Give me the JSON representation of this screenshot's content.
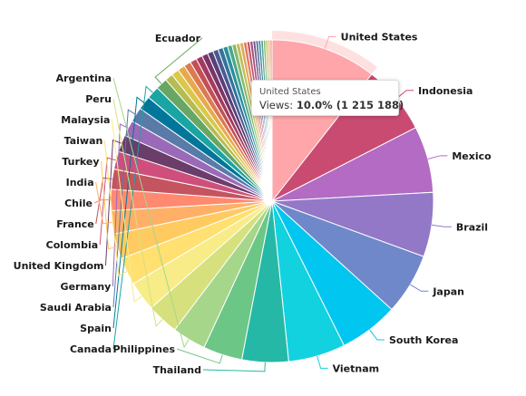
{
  "chart_data": {
    "type": "pie",
    "title": "",
    "legend": "none",
    "slices": [
      {
        "label": "United States",
        "value": 10.0,
        "color": "#ffa6aa"
      },
      {
        "label": "Indonesia",
        "value": 6.5,
        "color": "#c94b72"
      },
      {
        "label": "Mexico",
        "value": 6.3,
        "color": "#b36bc4"
      },
      {
        "label": "Brazil",
        "value": 6.1,
        "color": "#9478c8"
      },
      {
        "label": "Japan",
        "value": 5.8,
        "color": "#6f88c9"
      },
      {
        "label": "South Korea",
        "value": 5.6,
        "color": "#00c6f0"
      },
      {
        "label": "Vietnam",
        "value": 5.4,
        "color": "#12d2e0"
      },
      {
        "label": "Thailand",
        "value": 4.4,
        "color": "#26b8a6"
      },
      {
        "label": "Philippines",
        "value": 3.7,
        "color": "#6cc686"
      },
      {
        "label": "Argentina",
        "value": 3.2,
        "color": "#a6d68a"
      },
      {
        "label": "Peru",
        "value": 3.0,
        "color": "#d6e17e"
      },
      {
        "label": "Malaysia",
        "value": 2.8,
        "color": "#f7ec88"
      },
      {
        "label": "Taiwan",
        "value": 2.6,
        "color": "#ffe070"
      },
      {
        "label": "Turkey",
        "value": 2.4,
        "color": "#ffcb60"
      },
      {
        "label": "India",
        "value": 2.2,
        "color": "#ffb066"
      },
      {
        "label": "Chile",
        "value": 2.0,
        "color": "#ff8a70"
      },
      {
        "label": "France",
        "value": 1.9,
        "color": "#c4545f"
      },
      {
        "label": "Colombia",
        "value": 1.7,
        "color": "#cf4f7c"
      },
      {
        "label": "United Kingdom",
        "value": 1.6,
        "color": "#6a3d6b"
      },
      {
        "label": "Germany",
        "value": 1.5,
        "color": "#9a6ab8"
      },
      {
        "label": "Saudi Arabia",
        "value": 1.4,
        "color": "#5a7aa8"
      },
      {
        "label": "Spain",
        "value": 1.3,
        "color": "#00779a"
      },
      {
        "label": "Canada",
        "value": 1.2,
        "color": "#1aa5a3"
      },
      {
        "label": "Ecuador",
        "value": 1.1,
        "color": "#67a663"
      },
      {
        "label": "",
        "value": 0.75,
        "color": "#b5bc52"
      },
      {
        "label": "",
        "value": 0.72,
        "color": "#d9c84a"
      },
      {
        "label": "",
        "value": 0.69,
        "color": "#e8a94e"
      },
      {
        "label": "",
        "value": 0.66,
        "color": "#dc7a50"
      },
      {
        "label": "",
        "value": 0.63,
        "color": "#c34f57"
      },
      {
        "label": "",
        "value": 0.6,
        "color": "#a43a5f"
      },
      {
        "label": "",
        "value": 0.57,
        "color": "#7a3566"
      },
      {
        "label": "",
        "value": 0.54,
        "color": "#5a3e79"
      },
      {
        "label": "",
        "value": 0.51,
        "color": "#4a5a8e"
      },
      {
        "label": "",
        "value": 0.48,
        "color": "#33739c"
      },
      {
        "label": "",
        "value": 0.45,
        "color": "#2a8f9a"
      },
      {
        "label": "",
        "value": 0.42,
        "color": "#4aa88a"
      },
      {
        "label": "",
        "value": 0.39,
        "color": "#86b86c"
      },
      {
        "label": "",
        "value": 0.36,
        "color": "#bfbf58"
      },
      {
        "label": "",
        "value": 0.34,
        "color": "#e2a85a"
      },
      {
        "label": "",
        "value": 0.32,
        "color": "#e07a62"
      },
      {
        "label": "",
        "value": 0.3,
        "color": "#c9556d"
      },
      {
        "label": "",
        "value": 0.28,
        "color": "#9e4d7e"
      },
      {
        "label": "",
        "value": 0.26,
        "color": "#75568f"
      },
      {
        "label": "",
        "value": 0.25,
        "color": "#55719d"
      },
      {
        "label": "",
        "value": 0.24,
        "color": "#3e8b9f"
      },
      {
        "label": "",
        "value": 0.23,
        "color": "#4aa48e"
      },
      {
        "label": "",
        "value": 0.22,
        "color": "#82b676"
      },
      {
        "label": "",
        "value": 0.21,
        "color": "#b9c064"
      },
      {
        "label": "",
        "value": 0.2,
        "color": "#e0b264"
      },
      {
        "label": "",
        "value": 0.19,
        "color": "#e88c6e"
      }
    ],
    "highlighted": "United States"
  },
  "tooltip": {
    "title": "United States",
    "series_label": "Views:",
    "value_text": "10.0% (1 215 188)"
  }
}
